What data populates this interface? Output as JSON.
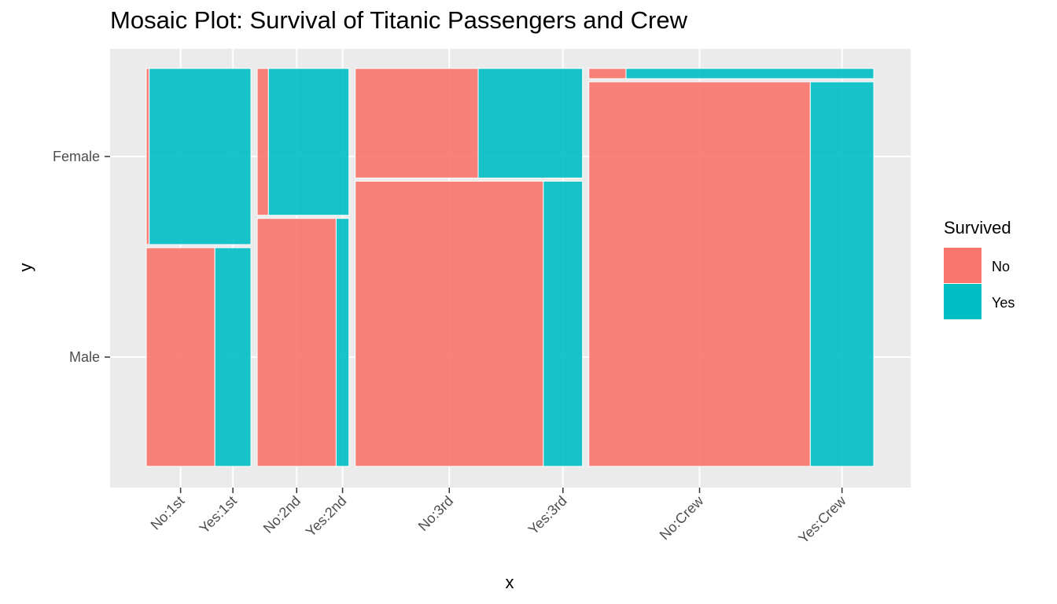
{
  "chart_data": {
    "type": "mosaic",
    "title": "Mosaic Plot: Survival of Titanic Passengers and Crew",
    "xlabel": "x",
    "ylabel": "y",
    "legend": {
      "title": "Survived",
      "position": "right",
      "entries": [
        "No",
        "Yes"
      ]
    },
    "colors": {
      "No": "#F8766D",
      "Yes": "#00BFC4",
      "panel": "#EBEBEB",
      "grid": "#FFFFFF"
    },
    "grid": true,
    "classes": [
      "1st",
      "2nd",
      "3rd",
      "Crew"
    ],
    "y_categories": [
      "Female",
      "Male"
    ],
    "x_tick_labels": [
      "No:1st",
      "Yes:1st",
      "No:2nd",
      "Yes:2nd",
      "No:3rd",
      "Yes:3rd",
      "No:Crew",
      "Yes:Crew"
    ],
    "counts": [
      {
        "class": "1st",
        "sex": "Male",
        "No": 118,
        "Yes": 62
      },
      {
        "class": "1st",
        "sex": "Female",
        "No": 4,
        "Yes": 141
      },
      {
        "class": "2nd",
        "sex": "Male",
        "No": 154,
        "Yes": 25
      },
      {
        "class": "2nd",
        "sex": "Female",
        "No": 13,
        "Yes": 93
      },
      {
        "class": "3rd",
        "sex": "Male",
        "No": 422,
        "Yes": 88
      },
      {
        "class": "3rd",
        "sex": "Female",
        "No": 106,
        "Yes": 90
      },
      {
        "class": "Crew",
        "sex": "Male",
        "No": 670,
        "Yes": 192
      },
      {
        "class": "Crew",
        "sex": "Female",
        "No": 3,
        "Yes": 20
      }
    ]
  }
}
